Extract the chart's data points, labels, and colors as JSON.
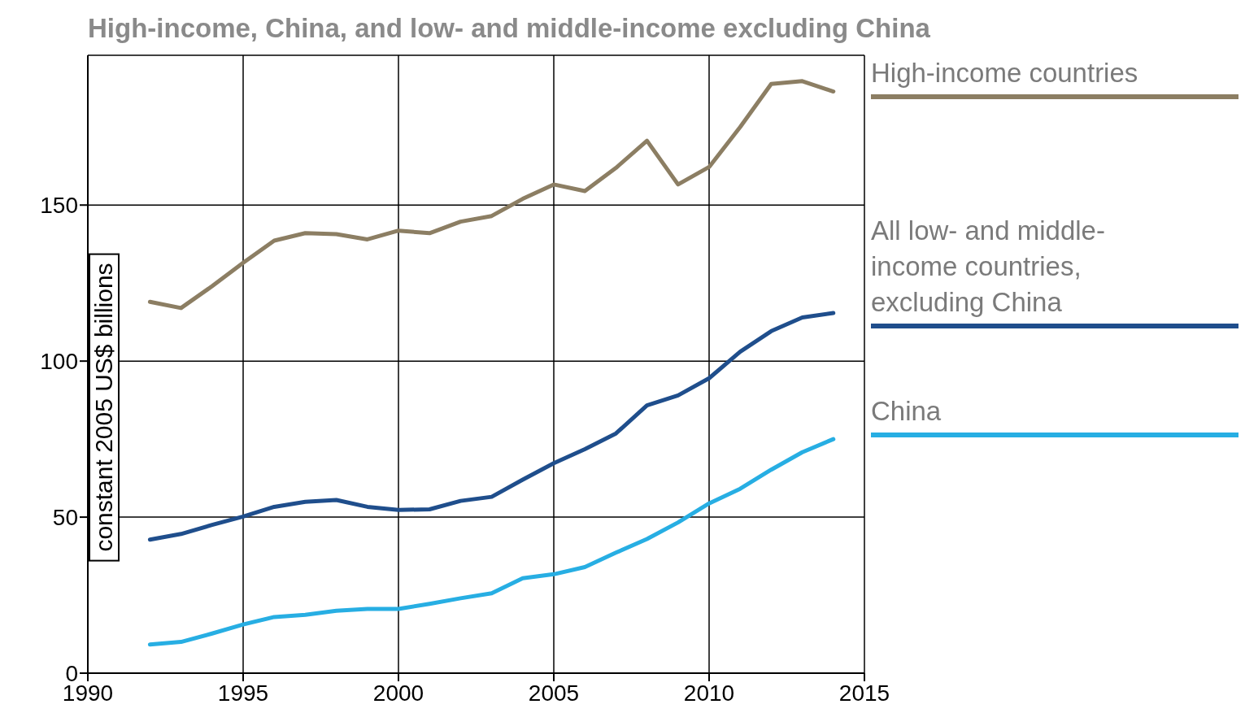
{
  "chart_data": {
    "type": "line",
    "title": "High-income, China, and low- and middle-income excluding China",
    "ylabel": "constant 2005 US$ billions",
    "x": [
      1992,
      1993,
      1994,
      1995,
      1996,
      1997,
      1998,
      1999,
      2000,
      2001,
      2002,
      2003,
      2004,
      2005,
      2006,
      2007,
      2008,
      2009,
      2010,
      2011,
      2012,
      2013,
      2014
    ],
    "series": [
      {
        "name": "High-income countries",
        "color": "#8c7e63",
        "values": [
          119,
          117,
          124,
          131.5,
          138.6,
          141,
          140.7,
          139,
          141.8,
          141,
          144.7,
          146.5,
          152,
          156.6,
          154.5,
          161.9,
          170.6,
          156.6,
          162.2,
          175,
          188.8,
          189.7,
          186.4
        ]
      },
      {
        "name": "All low- and middle-income countries, excluding China",
        "color": "#1f4e8c",
        "values": [
          42.8,
          44.6,
          47.5,
          50.2,
          53.3,
          54.9,
          55.5,
          53.3,
          52.3,
          52.5,
          55.2,
          56.5,
          62,
          67.3,
          71.8,
          76.8,
          85.8,
          89,
          94.5,
          103,
          109.6,
          114,
          115.4
        ]
      },
      {
        "name": "China",
        "color": "#27aee3",
        "values": [
          9.2,
          10,
          12.7,
          15.6,
          18,
          18.7,
          20,
          20.6,
          20.6,
          22.2,
          24,
          25.6,
          30.4,
          31.7,
          34,
          38.6,
          43,
          48.3,
          54.4,
          59.1,
          65.2,
          70.8,
          75
        ]
      }
    ],
    "xlim": [
      1990,
      2015
    ],
    "xticks": [
      1990,
      1995,
      2000,
      2005,
      2010,
      2015
    ],
    "ylim": [
      0,
      198
    ],
    "yticks": [
      0,
      50,
      100,
      150
    ],
    "grid": true,
    "legend": "right",
    "marker": "none",
    "line_style": "solid"
  }
}
